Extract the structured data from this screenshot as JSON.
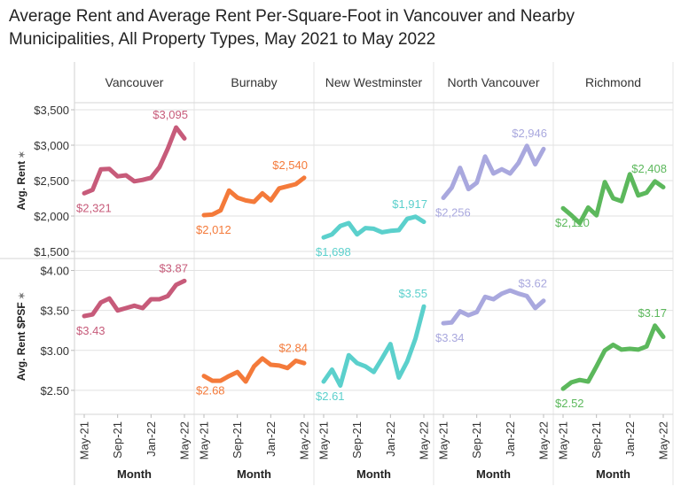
{
  "title": "Average Rent and Average Rent Per-Square-Foot in Vancouver and Nearby Municipalities, All Property Types, May 2021 to May 2022",
  "chart_data": {
    "type": "line",
    "x": [
      "May-21",
      "Jun-21",
      "Jul-21",
      "Aug-21",
      "Sep-21",
      "Oct-21",
      "Nov-21",
      "Dec-21",
      "Jan-22",
      "Feb-22",
      "Mar-22",
      "Apr-22",
      "May-22"
    ],
    "x_tick_labels": [
      "May-21",
      "Sep-21",
      "Jan-22",
      "May-22"
    ],
    "xlabel": "Month",
    "grid": true,
    "rows": [
      {
        "ylabel": "Avg. Rent",
        "ylim": [
          1400,
          3600
        ],
        "y_ticks": [
          1500,
          2000,
          2500,
          3000,
          3500
        ],
        "y_tick_labels": [
          "$1,500",
          "$2,000",
          "$2,500",
          "$3,000",
          "$3,500"
        ]
      },
      {
        "ylabel": "Avg. Rent $PSF",
        "ylim": [
          2.2,
          4.15
        ],
        "y_ticks": [
          2.5,
          3.0,
          3.5,
          4.0
        ],
        "y_tick_labels": [
          "$2.50",
          "$3.00",
          "$3.50",
          "$4.00"
        ]
      }
    ],
    "panels": [
      {
        "name": "Vancouver",
        "color": "#c75b7a",
        "rent": [
          2321,
          2370,
          2660,
          2665,
          2560,
          2575,
          2490,
          2510,
          2540,
          2690,
          2950,
          3250,
          3095
        ],
        "psf": [
          3.43,
          3.45,
          3.6,
          3.65,
          3.5,
          3.53,
          3.56,
          3.53,
          3.64,
          3.64,
          3.68,
          3.82,
          3.87
        ],
        "rent_labels": [
          "$2,321",
          "$3,095"
        ],
        "psf_labels": [
          "$3.43",
          "$3.87"
        ]
      },
      {
        "name": "Burnaby",
        "color": "#f47a3a",
        "rent": [
          2012,
          2020,
          2080,
          2360,
          2260,
          2220,
          2200,
          2320,
          2220,
          2390,
          2420,
          2450,
          2540
        ],
        "psf": [
          2.68,
          2.62,
          2.62,
          2.68,
          2.73,
          2.61,
          2.8,
          2.9,
          2.82,
          2.81,
          2.78,
          2.87,
          2.84
        ],
        "rent_labels": [
          "$2,012",
          "$2,540"
        ],
        "psf_labels": [
          "$2.68",
          "$2.84"
        ]
      },
      {
        "name": "New Westminster",
        "color": "#5bd0cc",
        "rent": [
          1698,
          1740,
          1860,
          1900,
          1740,
          1830,
          1820,
          1770,
          1790,
          1800,
          1960,
          1990,
          1917
        ],
        "psf": [
          2.61,
          2.76,
          2.56,
          2.94,
          2.84,
          2.8,
          2.73,
          2.9,
          3.08,
          2.66,
          2.86,
          3.15,
          3.55
        ],
        "rent_labels": [
          "$1,698",
          "$1,917"
        ],
        "psf_labels": [
          "$2.61",
          "$3.55"
        ]
      },
      {
        "name": "North Vancouver",
        "color": "#a9a8de",
        "rent": [
          2256,
          2400,
          2680,
          2380,
          2470,
          2840,
          2600,
          2660,
          2600,
          2750,
          2990,
          2730,
          2946
        ],
        "psf": [
          3.34,
          3.35,
          3.49,
          3.44,
          3.48,
          3.67,
          3.64,
          3.71,
          3.75,
          3.71,
          3.68,
          3.53,
          3.62
        ],
        "rent_labels": [
          "$2,256",
          "$2,946"
        ],
        "psf_labels": [
          "$3.34",
          "$3.62"
        ]
      },
      {
        "name": "Richmond",
        "color": "#5cb85c",
        "rent": [
          2110,
          2010,
          1900,
          2120,
          2010,
          2480,
          2250,
          2210,
          2590,
          2290,
          2330,
          2490,
          2408
        ],
        "psf": [
          2.52,
          2.6,
          2.63,
          2.61,
          2.8,
          3.0,
          3.07,
          3.01,
          3.02,
          3.01,
          3.05,
          3.31,
          3.17
        ],
        "rent_labels": [
          "$2,110",
          "$2,408"
        ],
        "psf_labels": [
          "$2.52",
          "$3.17"
        ]
      }
    ]
  }
}
